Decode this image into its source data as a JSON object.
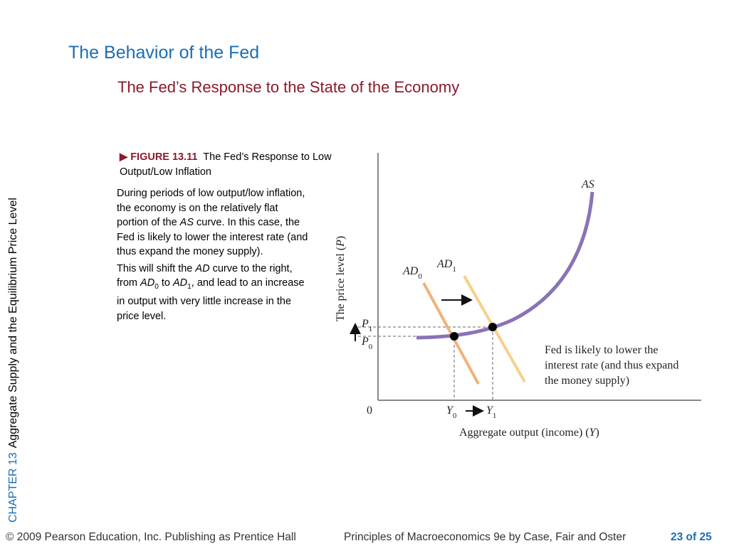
{
  "header": {
    "title": "The Behavior of the Fed",
    "subtitle": "The Fed’s Response to the State of the Economy"
  },
  "sidebar": {
    "chapter": "CHAPTER 13",
    "chapter_title": "Aggregate Supply and the Equilibrium Price Level"
  },
  "figure": {
    "label": "FIGURE 13.11",
    "caption": "The Fed’s Response to Low Output/Low Inflation"
  },
  "body": {
    "paragraphs": [
      [
        {
          "text": "During periods of low output/low inflation, the economy is on the relatively flat portion of the "
        },
        {
          "text": "AS",
          "style": "italic"
        },
        {
          "text": " curve. In this case, the Fed is likely to lower the interest rate (and thus expand the money supply)."
        }
      ],
      [
        {
          "text": "This will shift the "
        },
        {
          "text": "AD",
          "style": "italic"
        },
        {
          "text": " curve to the right, from "
        },
        {
          "text": "AD",
          "style": "italic"
        },
        {
          "text": "0",
          "style": "sub"
        },
        {
          "text": " to "
        },
        {
          "text": "AD",
          "style": "italic"
        },
        {
          "text": "1",
          "style": "sub"
        },
        {
          "text": ", and lead to an increase in output with very little increase in the price level."
        }
      ]
    ]
  },
  "diagram": {
    "y_axis_label": [
      {
        "text": "The price level ("
      },
      {
        "text": "P",
        "style": "italic"
      },
      {
        "text": ")"
      }
    ],
    "x_axis_label": [
      {
        "text": "Aggregate output (income) ("
      },
      {
        "text": "Y",
        "style": "italic"
      },
      {
        "text": ")"
      }
    ],
    "as_label": [
      {
        "text": "AS",
        "style": "italic"
      }
    ],
    "ad0_label": [
      {
        "text": "AD",
        "style": "italic"
      },
      {
        "text": "0",
        "style": "sub"
      }
    ],
    "ad1_label": [
      {
        "text": "AD",
        "style": "italic"
      },
      {
        "text": "1",
        "style": "sub"
      }
    ],
    "p1_label": [
      {
        "text": "P",
        "style": "italic"
      },
      {
        "text": "1",
        "style": "sub"
      }
    ],
    "p0_label": [
      {
        "text": "P",
        "style": "italic"
      },
      {
        "text": "0",
        "style": "sub"
      }
    ],
    "y0_label": [
      {
        "text": "Y",
        "style": "italic"
      },
      {
        "text": "0",
        "style": "sub"
      }
    ],
    "y1_label": [
      {
        "text": "Y",
        "style": "italic"
      },
      {
        "text": "1",
        "style": "sub"
      }
    ],
    "origin_label": "0",
    "note": [
      "Fed is likely to lower the",
      "interest rate (and thus expand",
      "the money supply)"
    ]
  },
  "footer": {
    "copyright": "© 2009 Pearson Education, Inc. Publishing as Prentice Hall",
    "book": "Principles of Macroeconomics 9e by Case, Fair and Oster",
    "page": "23 of 25"
  }
}
